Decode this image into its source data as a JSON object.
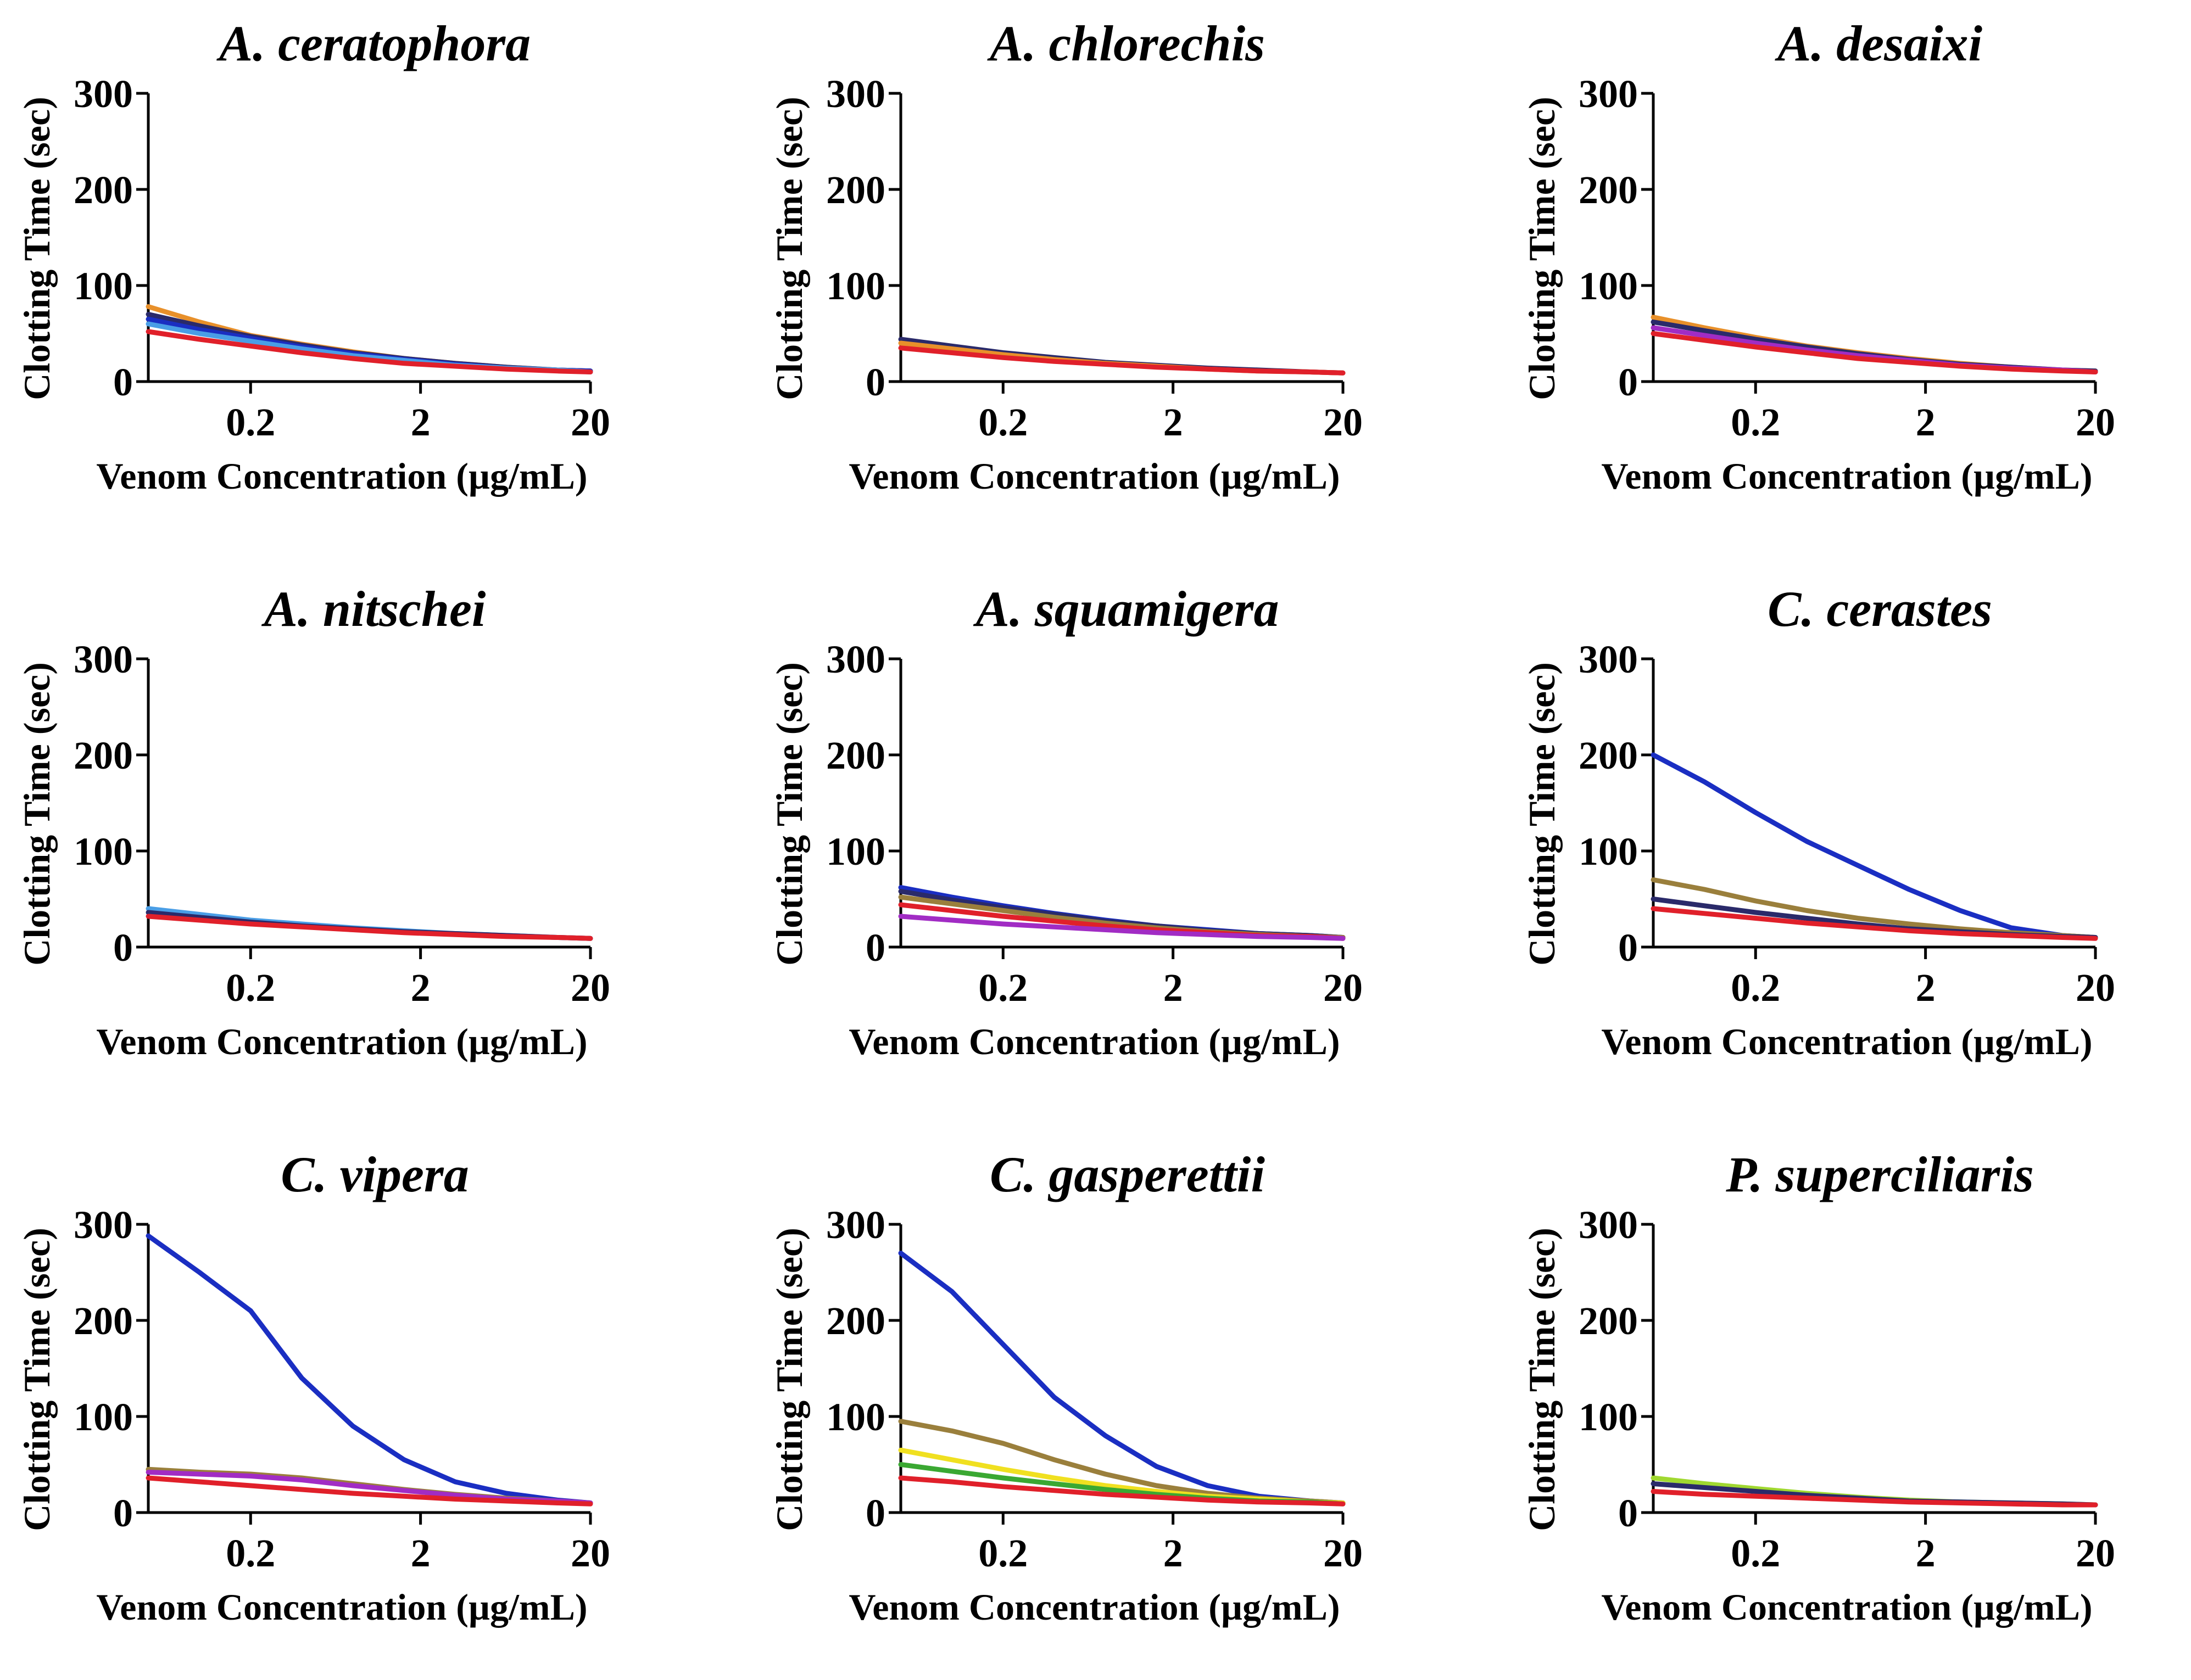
{
  "figure": {
    "ylabel": "Clotting Time (sec)",
    "xlabel": "Venom Concentration (µg/mL)",
    "y_ticks": [
      "0",
      "100",
      "200",
      "300"
    ],
    "x_ticks": [
      "0.2",
      "2",
      "20"
    ]
  },
  "series_colors": {
    "blue": "#1a2ec2",
    "olive": "#9a7f3c",
    "yellow": "#f0e020",
    "green": "#3aa832",
    "lightgreen": "#a0d830",
    "purple": "#a12cc4",
    "skyblue": "#4a9ee6",
    "orange": "#e8902a",
    "navy": "#2a2a6a",
    "red": "#e0202a"
  },
  "chart_data": [
    {
      "type": "line",
      "title": "A. ceratophora",
      "xlabel": "Venom Concentration (µg/mL)",
      "ylabel": "Clotting Time (sec)",
      "xscale": "log",
      "xlim": [
        0.05,
        20
      ],
      "ylim": [
        0,
        300
      ],
      "x": [
        0.05,
        0.1,
        0.2,
        0.4,
        0.8,
        1.6,
        3.2,
        6.4,
        12.8,
        20
      ],
      "series": [
        {
          "color": "orange",
          "values": [
            78,
            62,
            48,
            39,
            31,
            24,
            19,
            15,
            12,
            11
          ]
        },
        {
          "color": "navy",
          "values": [
            70,
            58,
            47,
            38,
            30,
            24,
            19,
            15,
            12,
            11
          ]
        },
        {
          "color": "blue",
          "values": [
            65,
            54,
            45,
            36,
            29,
            23,
            18,
            14,
            12,
            11
          ]
        },
        {
          "color": "skyblue",
          "values": [
            60,
            50,
            42,
            34,
            27,
            22,
            17,
            14,
            12,
            10
          ]
        },
        {
          "color": "red",
          "values": [
            52,
            44,
            37,
            30,
            24,
            19,
            16,
            13,
            11,
            10
          ]
        }
      ]
    },
    {
      "type": "line",
      "title": "A. chlorechis",
      "xlabel": "Venom Concentration (µg/mL)",
      "ylabel": "Clotting Time (sec)",
      "xscale": "log",
      "xlim": [
        0.05,
        20
      ],
      "ylim": [
        0,
        300
      ],
      "x": [
        0.05,
        0.1,
        0.2,
        0.4,
        0.8,
        1.6,
        3.2,
        6.4,
        12.8,
        20
      ],
      "series": [
        {
          "color": "navy",
          "values": [
            44,
            37,
            30,
            25,
            20,
            17,
            14,
            12,
            10,
            9
          ]
        },
        {
          "color": "orange",
          "values": [
            40,
            34,
            28,
            23,
            19,
            16,
            13,
            11,
            10,
            9
          ]
        },
        {
          "color": "red",
          "values": [
            35,
            30,
            25,
            21,
            18,
            15,
            13,
            11,
            10,
            9
          ]
        }
      ]
    },
    {
      "type": "line",
      "title": "A. desaixi",
      "xlabel": "Venom Concentration (µg/mL)",
      "ylabel": "Clotting Time (sec)",
      "xscale": "log",
      "xlim": [
        0.05,
        20
      ],
      "ylim": [
        0,
        300
      ],
      "x": [
        0.05,
        0.1,
        0.2,
        0.4,
        0.8,
        1.6,
        3.2,
        6.4,
        12.8,
        20
      ],
      "series": [
        {
          "color": "orange",
          "values": [
            67,
            56,
            46,
            37,
            30,
            24,
            19,
            15,
            12,
            11
          ]
        },
        {
          "color": "navy",
          "values": [
            62,
            53,
            44,
            36,
            29,
            23,
            18,
            15,
            12,
            11
          ]
        },
        {
          "color": "purple",
          "values": [
            56,
            48,
            40,
            33,
            27,
            22,
            17,
            14,
            12,
            10
          ]
        },
        {
          "color": "red",
          "values": [
            50,
            43,
            36,
            30,
            24,
            20,
            16,
            13,
            11,
            10
          ]
        }
      ]
    },
    {
      "type": "line",
      "title": "A. nitschei",
      "xlabel": "Venom Concentration (µg/mL)",
      "ylabel": "Clotting Time (sec)",
      "xscale": "log",
      "xlim": [
        0.05,
        20
      ],
      "ylim": [
        0,
        300
      ],
      "x": [
        0.05,
        0.1,
        0.2,
        0.4,
        0.8,
        1.6,
        3.2,
        6.4,
        12.8,
        20
      ],
      "series": [
        {
          "color": "skyblue",
          "values": [
            40,
            34,
            28,
            24,
            20,
            17,
            14,
            12,
            10,
            9
          ]
        },
        {
          "color": "navy",
          "values": [
            36,
            31,
            26,
            22,
            19,
            16,
            14,
            12,
            10,
            9
          ]
        },
        {
          "color": "red",
          "values": [
            32,
            28,
            24,
            21,
            18,
            15,
            13,
            11,
            10,
            9
          ]
        }
      ]
    },
    {
      "type": "line",
      "title": "A. squamigera",
      "xlabel": "Venom Concentration (µg/mL)",
      "ylabel": "Clotting Time (sec)",
      "xscale": "log",
      "xlim": [
        0.05,
        20
      ],
      "ylim": [
        0,
        300
      ],
      "x": [
        0.05,
        0.1,
        0.2,
        0.4,
        0.8,
        1.6,
        3.2,
        6.4,
        12.8,
        20
      ],
      "series": [
        {
          "color": "blue",
          "values": [
            62,
            52,
            43,
            35,
            28,
            22,
            18,
            14,
            12,
            10
          ]
        },
        {
          "color": "navy",
          "values": [
            58,
            49,
            41,
            34,
            27,
            22,
            17,
            14,
            12,
            10
          ]
        },
        {
          "color": "olive",
          "values": [
            52,
            45,
            38,
            31,
            25,
            20,
            16,
            13,
            11,
            10
          ]
        },
        {
          "color": "red",
          "values": [
            44,
            38,
            32,
            27,
            22,
            18,
            15,
            12,
            11,
            9
          ]
        },
        {
          "color": "purple",
          "values": [
            32,
            28,
            24,
            21,
            18,
            15,
            13,
            11,
            10,
            9
          ]
        }
      ]
    },
    {
      "type": "line",
      "title": "C. cerastes",
      "xlabel": "Venom Concentration (µg/mL)",
      "ylabel": "Clotting Time (sec)",
      "xscale": "log",
      "xlim": [
        0.05,
        20
      ],
      "ylim": [
        0,
        300
      ],
      "x": [
        0.05,
        0.1,
        0.2,
        0.4,
        0.8,
        1.6,
        3.2,
        6.4,
        12.8,
        20
      ],
      "series": [
        {
          "color": "blue",
          "values": [
            200,
            172,
            140,
            110,
            85,
            60,
            38,
            20,
            12,
            10
          ]
        },
        {
          "color": "olive",
          "values": [
            70,
            60,
            48,
            38,
            30,
            24,
            19,
            15,
            12,
            10
          ]
        },
        {
          "color": "navy",
          "values": [
            50,
            43,
            36,
            30,
            24,
            19,
            16,
            13,
            11,
            10
          ]
        },
        {
          "color": "red",
          "values": [
            40,
            35,
            30,
            25,
            21,
            17,
            14,
            12,
            10,
            9
          ]
        }
      ]
    },
    {
      "type": "line",
      "title": "C. vipera",
      "xlabel": "Venom Concentration (µg/mL)",
      "ylabel": "Clotting Time (sec)",
      "xscale": "log",
      "xlim": [
        0.05,
        20
      ],
      "ylim": [
        0,
        300
      ],
      "x": [
        0.05,
        0.1,
        0.2,
        0.4,
        0.8,
        1.6,
        3.2,
        6.4,
        12.8,
        20
      ],
      "series": [
        {
          "color": "blue",
          "values": [
            288,
            250,
            210,
            140,
            90,
            55,
            32,
            20,
            13,
            10
          ]
        },
        {
          "color": "olive",
          "values": [
            45,
            42,
            40,
            36,
            30,
            24,
            19,
            15,
            12,
            10
          ]
        },
        {
          "color": "purple",
          "values": [
            42,
            40,
            38,
            34,
            28,
            23,
            18,
            14,
            12,
            10
          ]
        },
        {
          "color": "red",
          "values": [
            36,
            32,
            28,
            24,
            20,
            17,
            14,
            12,
            10,
            9
          ]
        }
      ]
    },
    {
      "type": "line",
      "title": "C. gasperettii",
      "xlabel": "Venom Concentration (µg/mL)",
      "ylabel": "Clotting Time (sec)",
      "xscale": "log",
      "xlim": [
        0.05,
        20
      ],
      "ylim": [
        0,
        300
      ],
      "x": [
        0.05,
        0.1,
        0.2,
        0.4,
        0.8,
        1.6,
        3.2,
        6.4,
        12.8,
        20
      ],
      "series": [
        {
          "color": "blue",
          "values": [
            270,
            230,
            175,
            120,
            80,
            48,
            28,
            17,
            12,
            10
          ]
        },
        {
          "color": "olive",
          "values": [
            95,
            85,
            72,
            55,
            40,
            28,
            20,
            15,
            12,
            10
          ]
        },
        {
          "color": "yellow",
          "values": [
            65,
            55,
            45,
            36,
            28,
            22,
            17,
            14,
            11,
            10
          ]
        },
        {
          "color": "green",
          "values": [
            50,
            43,
            36,
            30,
            24,
            19,
            15,
            12,
            11,
            9
          ]
        },
        {
          "color": "red",
          "values": [
            36,
            32,
            27,
            23,
            19,
            16,
            13,
            11,
            10,
            9
          ]
        }
      ]
    },
    {
      "type": "line",
      "title": "P. superciliaris",
      "xlabel": "Venom Concentration (µg/mL)",
      "ylabel": "Clotting Time (sec)",
      "xscale": "log",
      "xlim": [
        0.05,
        20
      ],
      "ylim": [
        0,
        300
      ],
      "x": [
        0.05,
        0.1,
        0.2,
        0.4,
        0.8,
        1.6,
        3.2,
        6.4,
        12.8,
        20
      ],
      "series": [
        {
          "color": "lightgreen",
          "values": [
            36,
            30,
            25,
            20,
            16,
            13,
            11,
            10,
            9,
            8
          ]
        },
        {
          "color": "navy",
          "values": [
            30,
            26,
            22,
            18,
            15,
            12,
            11,
            10,
            9,
            8
          ]
        },
        {
          "color": "red",
          "values": [
            22,
            19,
            17,
            15,
            13,
            11,
            10,
            9,
            8,
            8
          ]
        }
      ]
    }
  ]
}
